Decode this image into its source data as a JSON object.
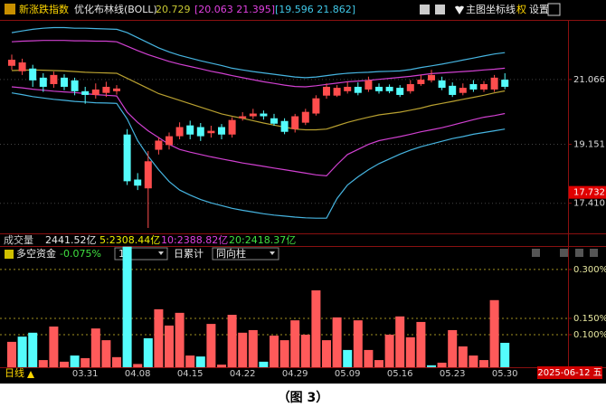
{
  "header": {
    "symbol": "新涨跌指数",
    "indicator": "优化布林线(BOLL)",
    "boll_mid": 20.729,
    "boll_band1": "[20.063  21.395]",
    "boll_band2": "[19.596  21.862]",
    "buttons": [
      "主图",
      "坐标线",
      "权",
      "设置"
    ]
  },
  "volume_info": {
    "label": "成交量",
    "values": [
      "2441.52亿",
      "5:2308.44亿",
      "10:2388.82亿",
      "20:2418.37亿"
    ],
    "colors": [
      "#e8e8e8",
      "#f0f000",
      "#e040e0",
      "#40e040"
    ]
  },
  "footer": {
    "period": "日线",
    "date": "2025-06-12 五"
  },
  "caption": "（图 3）",
  "chart_data": [
    {
      "type": "candlestick",
      "up_color": "#ff4d4d",
      "down_color": "#54fcfc",
      "ylim": [
        16.6,
        22.8
      ],
      "yticks": [
        {
          "value": 21.066,
          "label": "21.066"
        },
        {
          "value": 19.151,
          "label": "19.151"
        },
        {
          "value": 17.41,
          "label": "17.410"
        }
      ],
      "grid": true,
      "marker": {
        "value": 17.732,
        "label": "17.732",
        "color": "#e00000"
      },
      "open": [
        21.47,
        21.31,
        21.39,
        21.12,
        20.93,
        21.12,
        21.04,
        20.72,
        20.61,
        20.67,
        20.72,
        19.44,
        18.11,
        17.85,
        18.99,
        19.13,
        19.39,
        19.71,
        19.66,
        19.48,
        19.66,
        19.44,
        19.92,
        19.98,
        20.06,
        19.92,
        19.84,
        19.6,
        19.79,
        20.06,
        20.59,
        20.59,
        20.72,
        20.85,
        20.77,
        20.85,
        20.85,
        20.82,
        20.72,
        20.93,
        21.04,
        21.04,
        20.88,
        20.67,
        20.93,
        20.77,
        20.77,
        21.06
      ],
      "high": [
        21.8,
        21.68,
        21.5,
        21.25,
        21.3,
        21.22,
        21.12,
        20.85,
        20.95,
        21.0,
        20.9,
        19.6,
        18.3,
        18.95,
        19.35,
        19.5,
        19.8,
        19.85,
        19.78,
        19.7,
        19.75,
        19.95,
        20.1,
        20.2,
        20.15,
        20.05,
        19.92,
        20.05,
        20.2,
        20.6,
        20.95,
        20.9,
        21.0,
        20.98,
        21.15,
        20.95,
        20.92,
        20.9,
        21.05,
        21.2,
        21.35,
        21.15,
        20.98,
        20.95,
        21.05,
        21.02,
        21.2,
        21.25
      ],
      "low": [
        21.35,
        21.2,
        20.85,
        20.7,
        20.82,
        20.75,
        20.6,
        20.35,
        20.5,
        20.55,
        20.62,
        17.95,
        17.8,
        16.68,
        18.85,
        19.0,
        19.3,
        19.3,
        19.25,
        19.35,
        19.3,
        19.35,
        19.85,
        19.9,
        19.88,
        19.7,
        19.45,
        19.5,
        19.72,
        20.0,
        20.5,
        20.55,
        20.65,
        20.6,
        20.7,
        20.65,
        20.66,
        20.55,
        20.65,
        20.88,
        20.98,
        20.75,
        20.55,
        20.6,
        20.7,
        20.7,
        20.7,
        20.78
      ],
      "close": [
        21.65,
        21.57,
        21.04,
        20.85,
        21.2,
        20.85,
        20.72,
        20.61,
        20.77,
        20.85,
        20.8,
        18.06,
        17.93,
        18.65,
        19.26,
        19.39,
        19.66,
        19.44,
        19.39,
        19.55,
        19.44,
        19.87,
        19.98,
        20.06,
        19.98,
        19.76,
        19.52,
        19.98,
        20.11,
        20.51,
        20.85,
        20.82,
        20.85,
        20.67,
        21.04,
        20.72,
        20.72,
        20.61,
        20.93,
        21.06,
        21.2,
        20.82,
        20.61,
        20.82,
        20.77,
        20.93,
        21.12,
        20.85
      ],
      "series": [
        {
          "color": "#46b4e0",
          "values": [
            22.45,
            22.5,
            22.55,
            22.58,
            22.6,
            22.6,
            22.58,
            22.58,
            22.57,
            22.56,
            22.55,
            22.45,
            22.3,
            22.15,
            22.0,
            21.88,
            21.78,
            21.7,
            21.62,
            21.55,
            21.48,
            21.4,
            21.35,
            21.3,
            21.26,
            21.22,
            21.18,
            21.14,
            21.12,
            21.14,
            21.18,
            21.22,
            21.25,
            21.27,
            21.28,
            21.3,
            21.31,
            21.32,
            21.36,
            21.42,
            21.47,
            21.52,
            21.58,
            21.64,
            21.7,
            21.76,
            21.82,
            21.86
          ]
        },
        {
          "color": "#d040d0",
          "values": [
            22.18,
            22.2,
            22.21,
            22.22,
            22.22,
            22.22,
            22.21,
            22.21,
            22.2,
            22.2,
            22.18,
            22.05,
            21.92,
            21.8,
            21.7,
            21.6,
            21.52,
            21.45,
            21.38,
            21.31,
            21.25,
            21.18,
            21.12,
            21.06,
            21.0,
            20.95,
            20.9,
            20.86,
            20.85,
            20.88,
            20.92,
            20.96,
            21.0,
            21.02,
            21.04,
            21.07,
            21.1,
            21.13,
            21.16,
            21.2,
            21.24,
            21.26,
            21.28,
            21.3,
            21.32,
            21.35,
            21.37,
            21.4
          ]
        },
        {
          "color": "#b8a030",
          "values": [
            21.33,
            21.34,
            21.35,
            21.34,
            21.33,
            21.32,
            21.3,
            21.28,
            21.27,
            21.26,
            21.25,
            21.1,
            20.95,
            20.8,
            20.65,
            20.55,
            20.45,
            20.35,
            20.25,
            20.15,
            20.05,
            19.98,
            19.92,
            19.85,
            19.78,
            19.72,
            19.66,
            19.6,
            19.58,
            19.58,
            19.6,
            19.7,
            19.8,
            19.88,
            19.95,
            20.02,
            20.06,
            20.1,
            20.16,
            20.22,
            20.3,
            20.36,
            20.42,
            20.48,
            20.54,
            20.6,
            20.67,
            20.73
          ]
        },
        {
          "color": "#d040d0",
          "values": [
            20.85,
            20.82,
            20.78,
            20.75,
            20.72,
            20.7,
            20.68,
            20.65,
            20.62,
            20.6,
            20.58,
            20.1,
            19.8,
            19.55,
            19.35,
            19.15,
            19.0,
            18.92,
            18.85,
            18.78,
            18.72,
            18.66,
            18.6,
            18.55,
            18.5,
            18.45,
            18.4,
            18.35,
            18.3,
            18.25,
            18.22,
            18.55,
            18.85,
            19.0,
            19.15,
            19.26,
            19.32,
            19.38,
            19.45,
            19.52,
            19.58,
            19.64,
            19.72,
            19.8,
            19.88,
            19.95,
            20.0,
            20.06
          ]
        },
        {
          "color": "#46b4e0",
          "values": [
            20.67,
            20.62,
            20.56,
            20.52,
            20.48,
            20.45,
            20.42,
            20.4,
            20.38,
            20.37,
            20.36,
            19.9,
            19.26,
            18.8,
            18.4,
            18.05,
            17.8,
            17.65,
            17.52,
            17.42,
            17.34,
            17.26,
            17.2,
            17.15,
            17.1,
            17.06,
            17.03,
            17.0,
            16.98,
            16.97,
            16.97,
            17.55,
            17.95,
            18.19,
            18.4,
            18.58,
            18.72,
            18.86,
            18.98,
            19.08,
            19.16,
            19.24,
            19.32,
            19.38,
            19.45,
            19.5,
            19.55,
            19.6
          ]
        }
      ]
    },
    {
      "type": "bar",
      "title": "多空资金",
      "value_text": "-0.075%",
      "controls": [
        "1",
        "日累计",
        "同向柱"
      ],
      "ylim": [
        0,
        0.372
      ],
      "yticks": [
        {
          "value": 0.3,
          "label": "0.300%"
        },
        {
          "value": 0.15,
          "label": "0.150%"
        },
        {
          "value": 0.1,
          "label": "0.100%"
        }
      ],
      "grid": true,
      "categories": [
        null,
        null,
        null,
        null,
        null,
        null,
        null,
        "03.31",
        null,
        null,
        null,
        null,
        "04.08",
        null,
        null,
        null,
        null,
        "04.15",
        null,
        null,
        null,
        null,
        "04.22",
        null,
        null,
        null,
        null,
        "04.29",
        null,
        null,
        null,
        null,
        "05.09",
        null,
        null,
        null,
        null,
        "05.16",
        null,
        null,
        null,
        null,
        "05.23",
        null,
        null,
        null,
        null,
        "05.30"
      ],
      "values": [
        0.078,
        0.094,
        0.106,
        0.022,
        0.125,
        0.017,
        0.036,
        0.028,
        0.119,
        0.083,
        0.031,
        0.37,
        0.01,
        0.089,
        0.178,
        0.128,
        0.167,
        0.036,
        0.033,
        0.133,
        0.008,
        0.161,
        0.106,
        0.114,
        0.017,
        0.097,
        0.083,
        0.144,
        0.1,
        0.236,
        0.083,
        0.153,
        0.053,
        0.144,
        0.053,
        0.022,
        0.1,
        0.156,
        0.092,
        0.139,
        0.006,
        0.014,
        0.114,
        0.064,
        0.036,
        0.022,
        0.206,
        0.075
      ],
      "colors": [
        "#ff5a5a",
        "#54fcfc",
        "#54fcfc",
        "#ff5a5a",
        "#ff5a5a",
        "#ff5a5a",
        "#54fcfc",
        "#ff5a5a",
        "#ff5a5a",
        "#ff5a5a",
        "#ff5a5a",
        "#54fcfc",
        "#ff5a5a",
        "#54fcfc",
        "#ff5a5a",
        "#ff5a5a",
        "#ff5a5a",
        "#ff5a5a",
        "#54fcfc",
        "#ff5a5a",
        "#ff5a5a",
        "#ff5a5a",
        "#ff5a5a",
        "#ff5a5a",
        "#54fcfc",
        "#ff5a5a",
        "#ff5a5a",
        "#ff5a5a",
        "#ff5a5a",
        "#ff5a5a",
        "#ff5a5a",
        "#ff5a5a",
        "#54fcfc",
        "#ff5a5a",
        "#ff5a5a",
        "#ff5a5a",
        "#ff5a5a",
        "#ff5a5a",
        "#ff5a5a",
        "#ff5a5a",
        "#54fcfc",
        "#ff5a5a",
        "#ff5a5a",
        "#ff5a5a",
        "#ff5a5a",
        "#ff5a5a",
        "#ff5a5a",
        "#54fcfc"
      ]
    }
  ]
}
